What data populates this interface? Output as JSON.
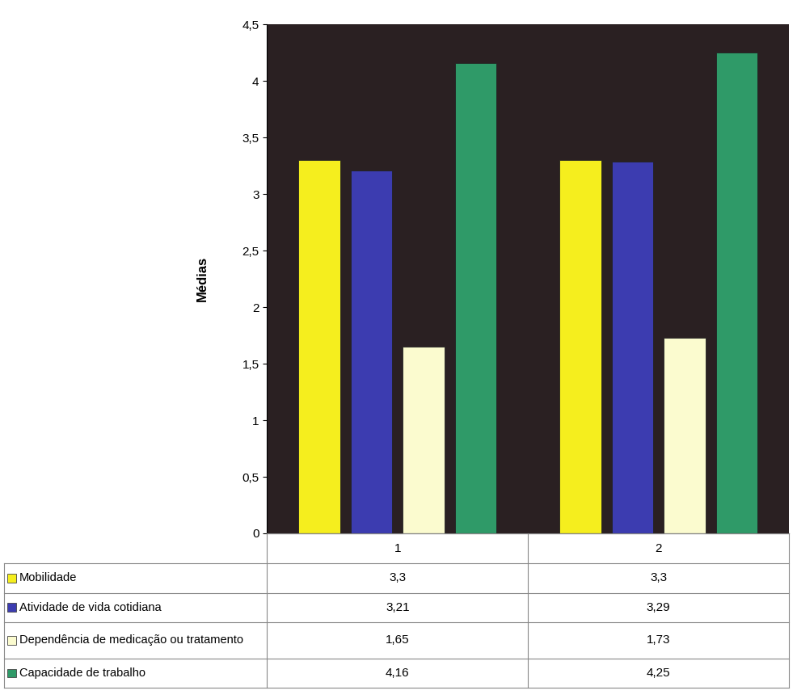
{
  "chart_data": {
    "type": "bar",
    "y_label": "Médias",
    "categories": [
      "1",
      "2"
    ],
    "series": [
      {
        "name": "Mobilidade",
        "color": "#f5ee1e",
        "values": [
          3.3,
          3.3
        ],
        "value_labels": [
          "3,3",
          "3,3"
        ]
      },
      {
        "name": "Atividade de vida cotidiana",
        "color": "#3c3cb0",
        "values": [
          3.21,
          3.29
        ],
        "value_labels": [
          "3,21",
          "3,29"
        ]
      },
      {
        "name": "Dependência de medicação ou tratamento",
        "color": "#fbfbcf",
        "values": [
          1.65,
          1.73
        ],
        "value_labels": [
          "1,65",
          "1,73"
        ]
      },
      {
        "name": "Capacidade de trabalho",
        "color": "#2f9a68",
        "values": [
          4.16,
          4.25
        ],
        "value_labels": [
          "4,16",
          "4,25"
        ]
      }
    ],
    "ylim": [
      0,
      4.5
    ],
    "yticks": [
      0,
      {
        "value": 0.5,
        "label": "0,5"
      },
      1,
      {
        "value": 1.5,
        "label": "1,5"
      },
      2,
      {
        "value": 2.5,
        "label": "2,5"
      },
      3,
      {
        "value": 3.5,
        "label": "3,5"
      },
      4,
      {
        "value": 4.5,
        "label": "4,5"
      }
    ]
  }
}
